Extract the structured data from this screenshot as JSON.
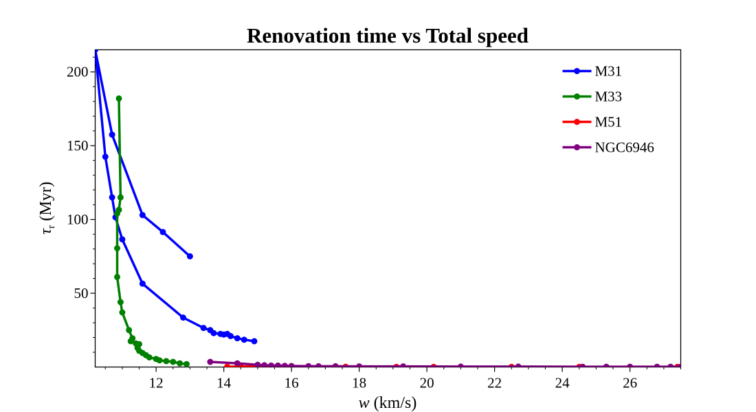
{
  "chart_data": {
    "type": "line",
    "title": "Renovation time vs Total speed",
    "xlabel": {
      "var": "w",
      "unit": " (km/s)"
    },
    "ylabel": {
      "var": "τ",
      "sub": "r",
      "unit": " (Myr)"
    },
    "xlim": [
      10.2,
      27.5
    ],
    "ylim": [
      0,
      215
    ],
    "xticks": [
      12,
      14,
      16,
      18,
      20,
      22,
      24,
      26
    ],
    "yticks": [
      50,
      100,
      150,
      200
    ],
    "xminor_step": 0.5,
    "yminor_step": 10,
    "grid": false,
    "legend_position": "top-right",
    "series": [
      {
        "name": "M31",
        "color": "#0000ff",
        "points": [
          [
            13.0,
            75
          ],
          [
            12.2,
            91.5
          ],
          [
            11.6,
            103
          ],
          [
            10.7,
            157.5
          ],
          [
            10.2,
            215
          ],
          [
            10.5,
            142.5
          ],
          [
            10.7,
            115
          ],
          [
            10.8,
            101.5
          ],
          [
            11.0,
            86.5
          ],
          [
            11.6,
            56.5
          ],
          [
            12.8,
            33.5
          ],
          [
            13.4,
            26.5
          ],
          [
            13.6,
            25
          ],
          [
            13.7,
            23
          ],
          [
            13.9,
            22.5
          ],
          [
            14.0,
            22
          ],
          [
            14.1,
            22.5
          ],
          [
            14.2,
            21
          ],
          [
            14.4,
            19.5
          ],
          [
            14.6,
            18.5
          ],
          [
            14.9,
            17.5
          ]
        ]
      },
      {
        "name": "M33",
        "color": "#008000",
        "points": [
          [
            10.9,
            182
          ],
          [
            10.95,
            115
          ],
          [
            10.9,
            106.5
          ],
          [
            10.85,
            104
          ],
          [
            10.85,
            80.5
          ],
          [
            10.85,
            61
          ],
          [
            10.95,
            44
          ],
          [
            11.0,
            37
          ],
          [
            11.2,
            25
          ],
          [
            11.3,
            19.5
          ],
          [
            11.25,
            17.5
          ],
          [
            11.4,
            16
          ],
          [
            11.5,
            15.5
          ],
          [
            11.45,
            13
          ],
          [
            11.5,
            11
          ],
          [
            11.6,
            9.5
          ],
          [
            11.7,
            8
          ],
          [
            11.8,
            6.5
          ],
          [
            12.0,
            5.5
          ],
          [
            12.1,
            4.5
          ],
          [
            12.3,
            4
          ],
          [
            12.5,
            3.5
          ],
          [
            12.7,
            2.5
          ],
          [
            12.9,
            2
          ]
        ]
      },
      {
        "name": "M51",
        "color": "#ff0000",
        "points": [
          [
            14.1,
            0.2
          ],
          [
            14.5,
            0.3
          ],
          [
            15.2,
            0.4
          ],
          [
            15.8,
            0.3
          ],
          [
            17.6,
            0.2
          ],
          [
            18.0,
            0.2
          ],
          [
            19.1,
            0.1
          ],
          [
            20.2,
            0.1
          ],
          [
            22.5,
            0.1
          ],
          [
            24.5,
            0.1
          ],
          [
            26.0,
            0.1
          ],
          [
            27.4,
            0.1
          ]
        ]
      },
      {
        "name": "NGC6946",
        "color": "#800080",
        "points": [
          [
            13.6,
            3.5
          ],
          [
            14.4,
            2.5
          ],
          [
            15.0,
            1.5
          ],
          [
            15.2,
            1.2
          ],
          [
            15.4,
            1.0
          ],
          [
            15.6,
            1.0
          ],
          [
            15.8,
            0.8
          ],
          [
            16.0,
            0.7
          ],
          [
            16.5,
            0.6
          ],
          [
            16.8,
            0.5
          ],
          [
            17.3,
            0.5
          ],
          [
            18.0,
            0.4
          ],
          [
            19.3,
            0.4
          ],
          [
            21.0,
            0.3
          ],
          [
            22.7,
            0.3
          ],
          [
            24.6,
            0.2
          ],
          [
            25.3,
            0.2
          ],
          [
            26.0,
            0.2
          ],
          [
            26.8,
            0.2
          ],
          [
            27.2,
            0.2
          ],
          [
            27.5,
            0.2
          ]
        ]
      }
    ]
  }
}
